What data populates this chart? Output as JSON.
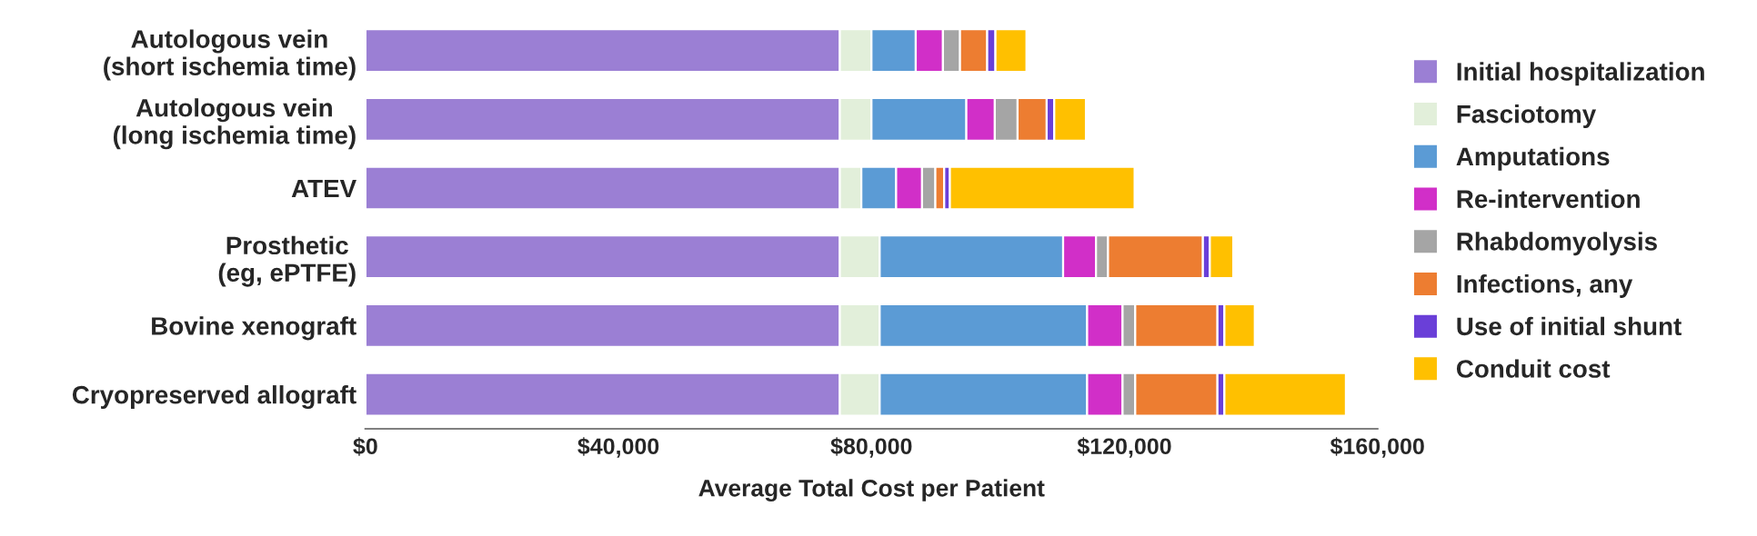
{
  "chart_data": {
    "type": "bar",
    "orientation": "horizontal",
    "stacked": true,
    "categories": [
      "Autologous vein\n(short ischemia time)",
      "Autologous vein\n(long ischemia time)",
      "ATEV",
      "Prosthetic\n(eg, ePTFE)",
      "Bovine xenograft",
      "Cryopreserved allograft"
    ],
    "series": [
      {
        "name": "Initial hospitalization",
        "color": "#9b7fd4",
        "values": [
          75000,
          75000,
          75000,
          75000,
          75000,
          75000
        ]
      },
      {
        "name": "Fasciotomy",
        "color": "#e2efda",
        "values": [
          5000,
          5000,
          3400,
          6300,
          6300,
          6300
        ]
      },
      {
        "name": "Amputations",
        "color": "#5b9bd5",
        "values": [
          7000,
          15000,
          5500,
          29000,
          32800,
          32800
        ]
      },
      {
        "name": "Re-intervention",
        "color": "#d12fc8",
        "values": [
          4300,
          4500,
          4100,
          5200,
          5600,
          5600
        ]
      },
      {
        "name": "Rhabdomyolysis",
        "color": "#a5a5a5",
        "values": [
          2700,
          3600,
          2100,
          1900,
          2000,
          2000
        ]
      },
      {
        "name": "Infections, any",
        "color": "#ed7d31",
        "values": [
          4300,
          4600,
          1400,
          15000,
          13000,
          13000
        ]
      },
      {
        "name": "Use of initial shunt",
        "color": "#6a3fd8",
        "values": [
          1300,
          1200,
          900,
          1100,
          1100,
          1100
        ]
      },
      {
        "name": "Conduit cost",
        "color": "#ffc000",
        "values": [
          4900,
          5000,
          29200,
          3700,
          4800,
          19200
        ]
      }
    ],
    "xlabel": "Average Total Cost per Patient",
    "xlim": [
      0,
      160000
    ],
    "xticks": [
      {
        "value": 0,
        "label": "$0"
      },
      {
        "value": 40000,
        "label": "$40,000"
      },
      {
        "value": 80000,
        "label": "$80,000"
      },
      {
        "value": 120000,
        "label": "$120,000"
      },
      {
        "value": 160000,
        "label": "$160,000"
      }
    ],
    "legend": "right",
    "grid": false
  }
}
